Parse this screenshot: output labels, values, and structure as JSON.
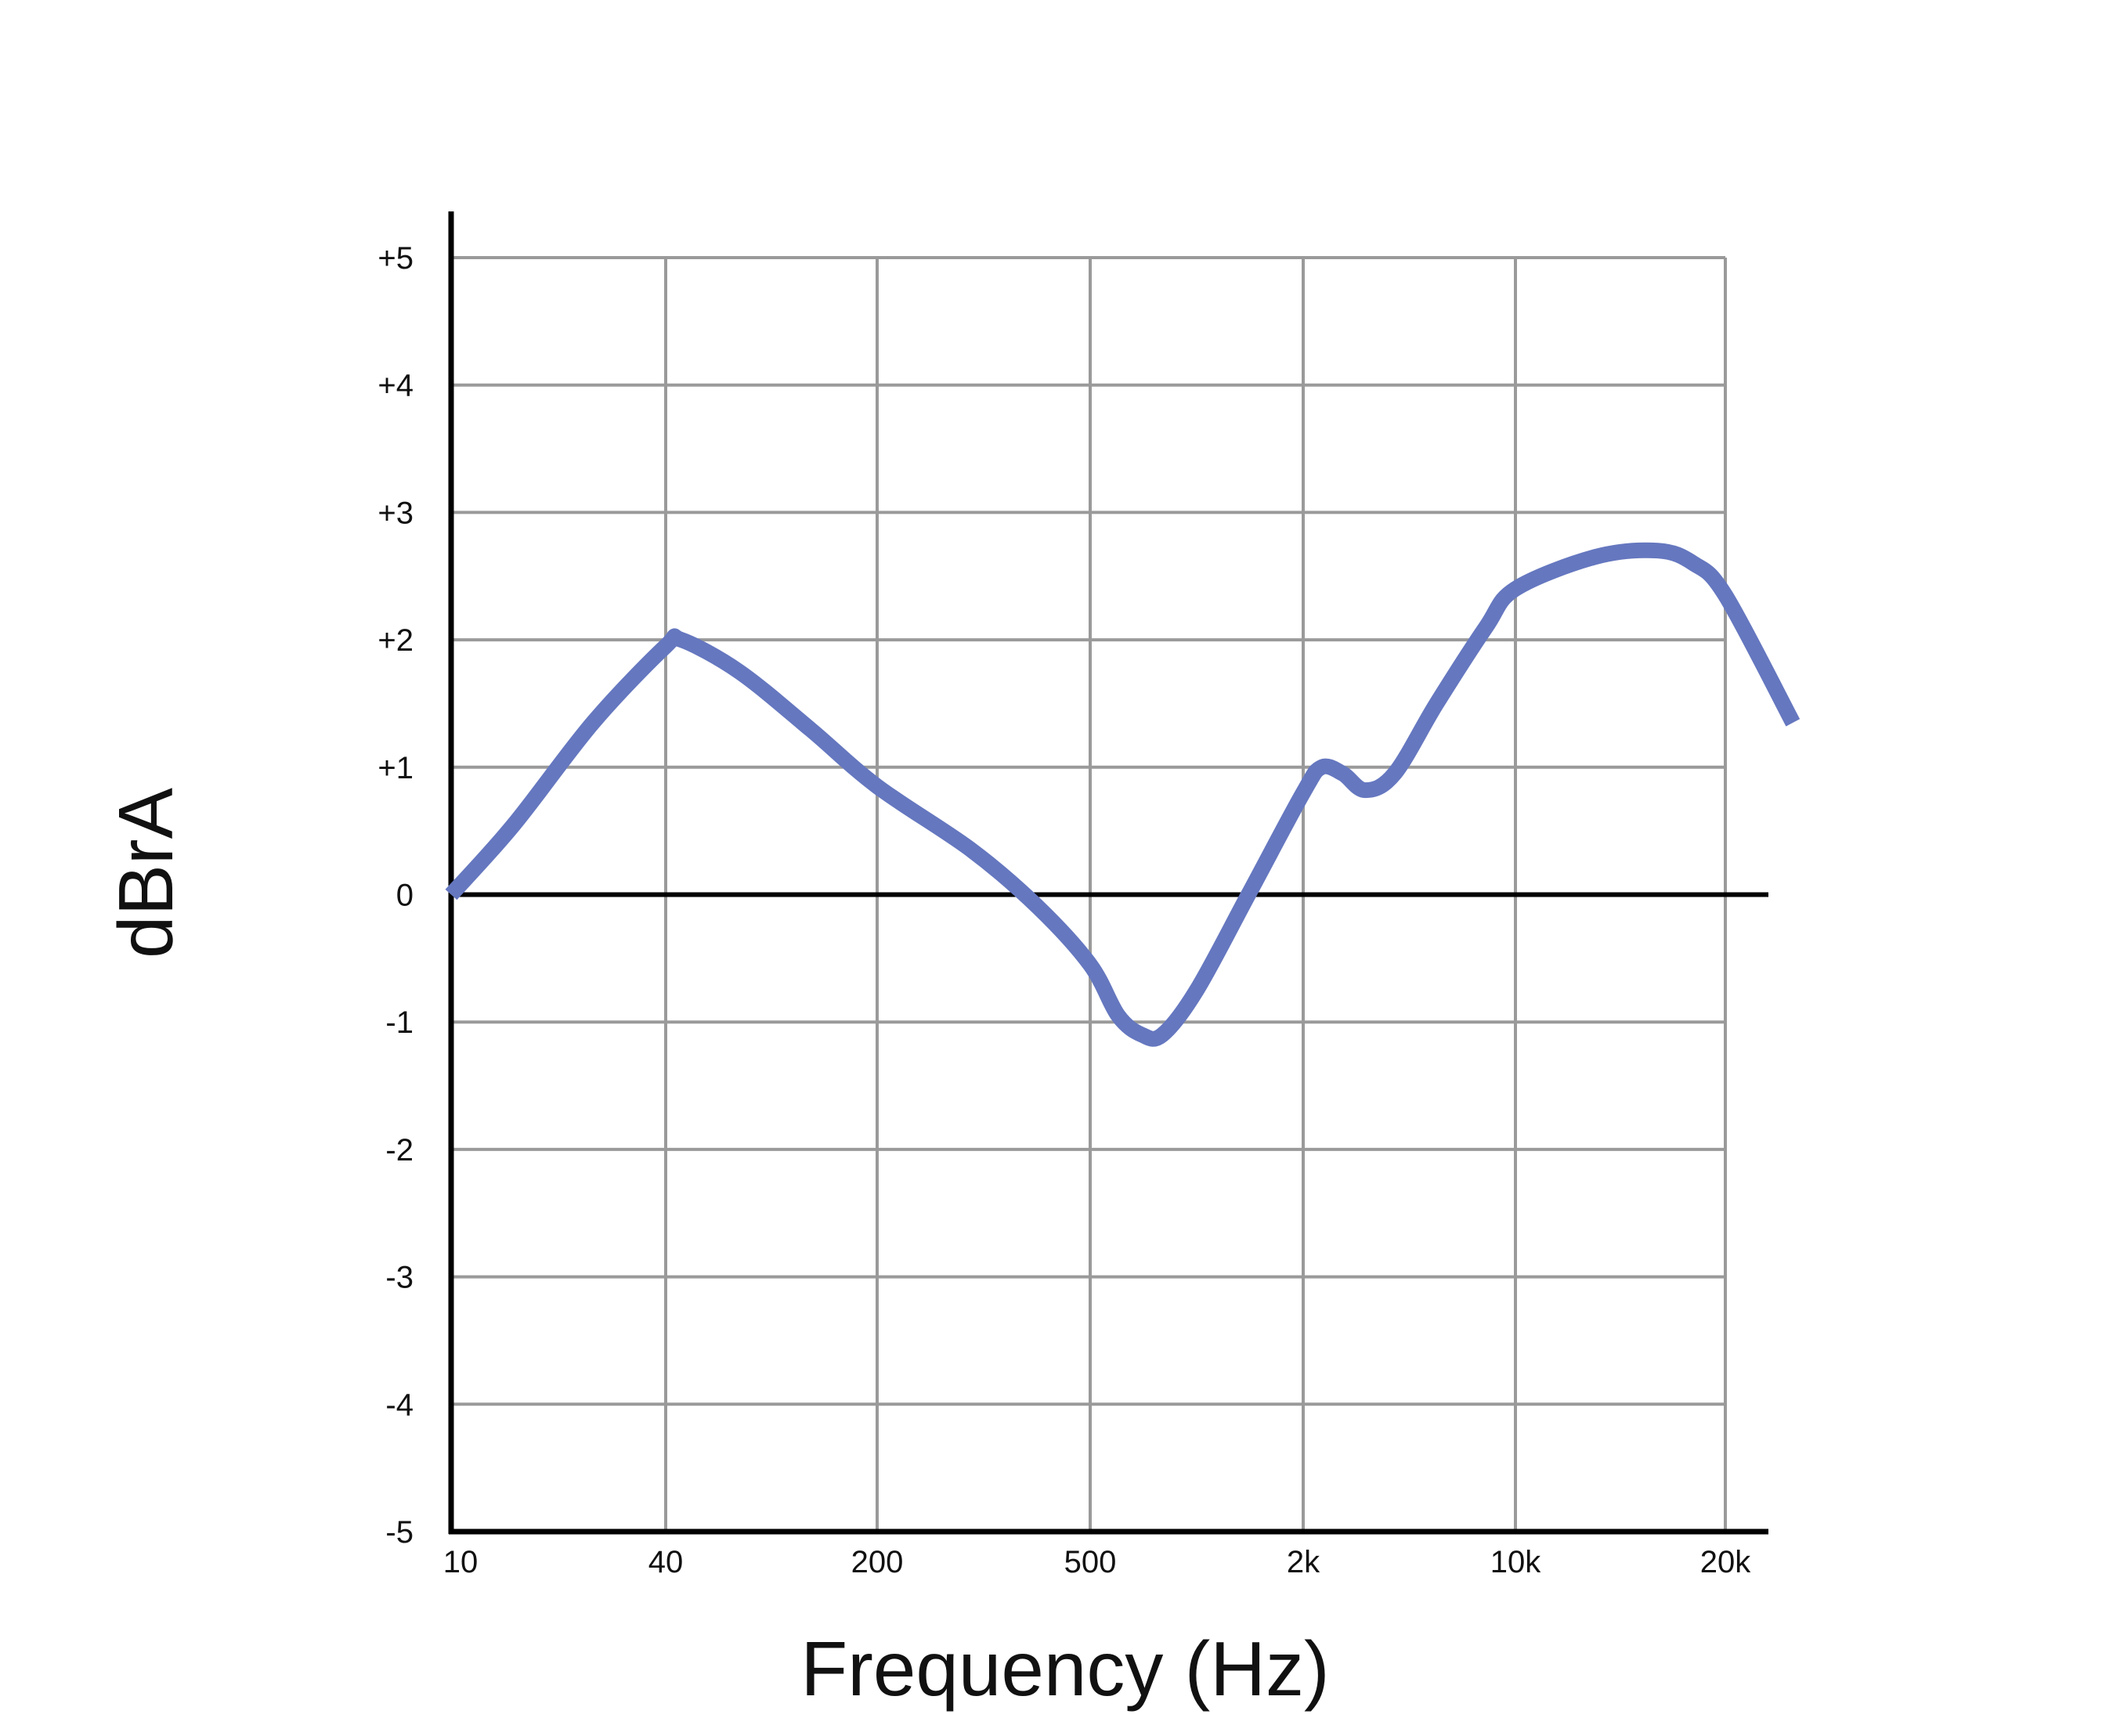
{
  "chart_data": {
    "type": "line",
    "title": "",
    "xlabel": "Frequency (Hz)",
    "ylabel": "dBrA",
    "x_ticks": [
      "10",
      "40",
      "200",
      "500",
      "2k",
      "10k",
      "20k"
    ],
    "y_ticks": [
      "+5",
      "+4",
      "+3",
      "+2",
      "+1",
      "0",
      "-1",
      "-2",
      "-3",
      "-4",
      "-5"
    ],
    "ylim": [
      -5,
      5
    ],
    "grid": true,
    "x_scale": "categorical (tick-indexed)",
    "series": [
      {
        "color": "#6577bf",
        "x": [
          10,
          15,
          25,
          40,
          45,
          70,
          120,
          200,
          300,
          400,
          500,
          600,
          700,
          800,
          1000,
          1400,
          2000,
          2300,
          2700,
          3200,
          4000,
          5500,
          8000,
          10000,
          13000,
          16000,
          18000,
          20000,
          25000
        ],
        "y": [
          0.0,
          0.55,
          1.35,
          1.95,
          2.0,
          1.75,
          1.3,
          0.85,
          0.35,
          -0.1,
          -0.55,
          -0.95,
          -1.1,
          -1.1,
          -0.75,
          0.0,
          0.8,
          1.0,
          0.95,
          0.82,
          0.95,
          1.5,
          2.1,
          2.4,
          2.65,
          2.7,
          2.6,
          2.35,
          1.35
        ]
      }
    ]
  }
}
